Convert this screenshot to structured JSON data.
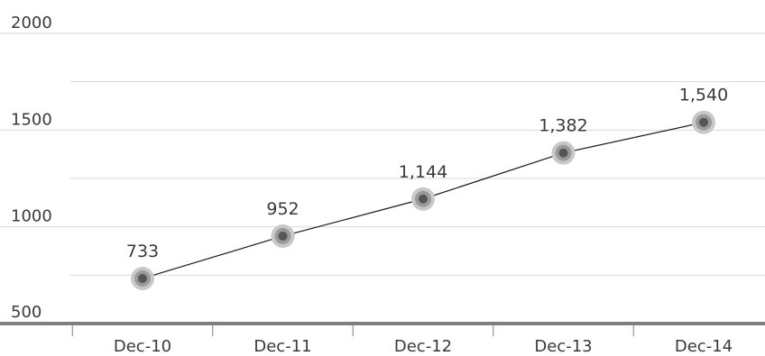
{
  "chart_data": {
    "type": "line",
    "title": "",
    "xlabel": "",
    "ylabel": "",
    "categories": [
      "Dec-10",
      "Dec-11",
      "Dec-12",
      "Dec-13",
      "Dec-14"
    ],
    "series": [
      {
        "values": [
          733,
          952,
          1144,
          1382,
          1540
        ],
        "value_labels": [
          "733",
          "952",
          "1,144",
          "1,382",
          "1,540"
        ]
      }
    ],
    "ylim": [
      500,
      2000
    ],
    "yticks": [
      500,
      1000,
      1500,
      2000
    ],
    "ytick_labels": [
      "500",
      "1000",
      "1500",
      "2000"
    ],
    "grid": true,
    "legend": "none",
    "colors": {
      "gridline": "#d9d9d9",
      "axis": "#7f7f7f",
      "line": "#1a1a1a",
      "marker_halo": "#c8c8c8",
      "marker_core": "#555555",
      "text": "#3a3a3a"
    }
  }
}
